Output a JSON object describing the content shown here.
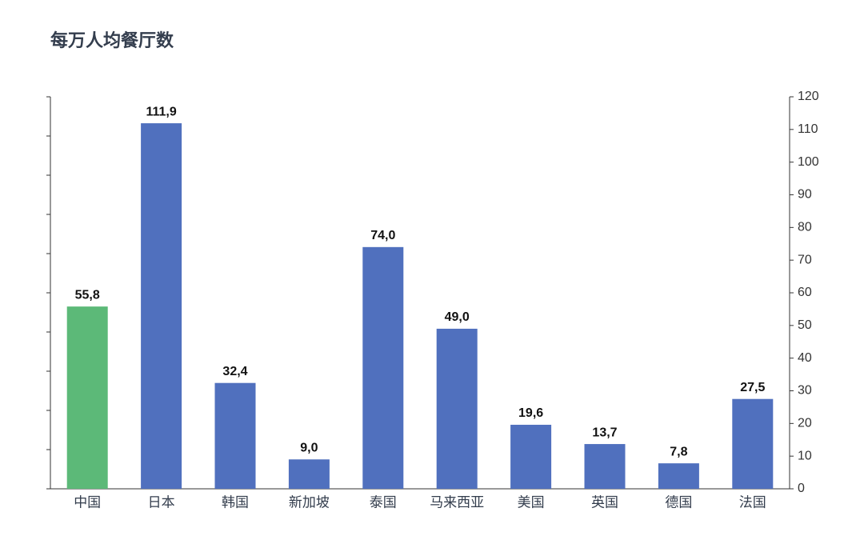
{
  "chart_data": {
    "type": "bar",
    "title": "每万人均餐厅数",
    "categories": [
      "中国",
      "日本",
      "韩国",
      "新加坡",
      "泰国",
      "马来西亚",
      "美国",
      "英国",
      "德国",
      "法国"
    ],
    "series": [
      {
        "axis": "y2",
        "values": [
          55.8,
          111.9,
          32.4,
          9.0,
          74.0,
          49.0,
          19.6,
          13.7,
          7.8,
          27.5
        ],
        "value_labels": [
          "55,8",
          "111,9",
          "32,4",
          "9,0",
          "74,0",
          "49,0",
          "19,6",
          "13,7",
          "7,8",
          "27,5"
        ],
        "colors": [
          "#5cb978",
          "#5070be",
          "#5070be",
          "#5070be",
          "#5070be",
          "#5070be",
          "#5070be",
          "#5070be",
          "#5070be",
          "#5070be"
        ]
      }
    ],
    "y2lim": [
      0,
      120
    ],
    "y2ticks": [
      0,
      10,
      20,
      30,
      40,
      50,
      60,
      70,
      80,
      90,
      100,
      110,
      120
    ]
  }
}
